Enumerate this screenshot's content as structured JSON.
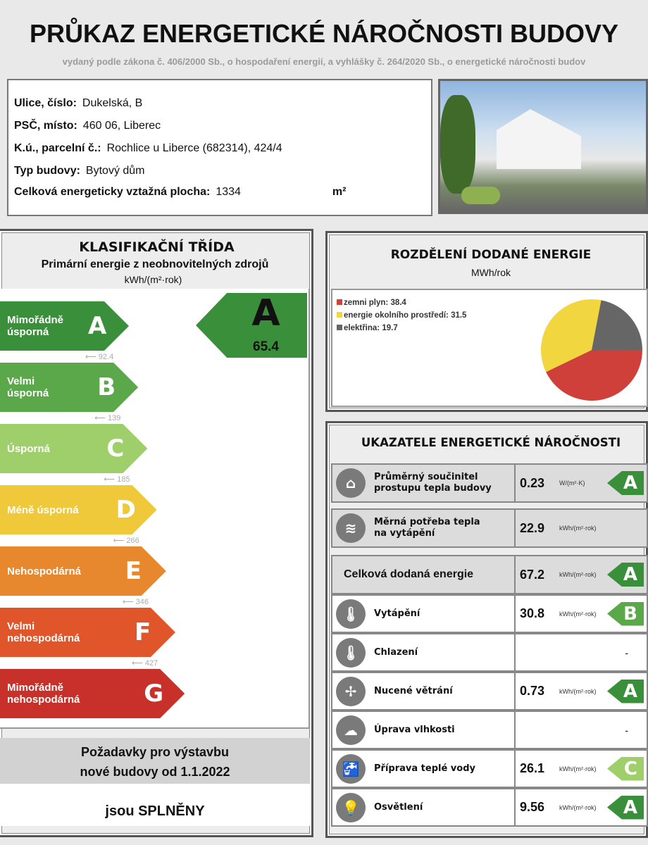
{
  "header": {
    "title": "PRŮKAZ ENERGETICKÉ NÁROČNOSTI BUDOVY",
    "subtitle": "vydaný podle zákona č. 406/2000 Sb., o hospodaření energií, a vyhlášky č. 264/2020 Sb., o energetické náročnosti budov"
  },
  "info": [
    {
      "label": "Ulice, číslo:",
      "value": "Dukelská, B"
    },
    {
      "label": "PSČ, místo:",
      "value": "460 06, Liberec"
    },
    {
      "label": "K.ú., parcelní č.:",
      "value": "Rochlice u Liberce (682314), 424/4"
    },
    {
      "label": "Typ budovy:",
      "value": "Bytový dům"
    },
    {
      "label": "Celková energeticky vztažná plocha:",
      "value": "1334",
      "unit": "m²"
    }
  ],
  "classification": {
    "title": "KLASIFIKAČNÍ TŘÍDA",
    "subtitle": "Primární energie z neobnovitelných zdrojů",
    "unit": "kWh/(m²·rok)",
    "classes": [
      {
        "letter": "A",
        "label": "Mimořádně\núsporná",
        "color": "#3a8f3a",
        "threshold": "92.4"
      },
      {
        "letter": "B",
        "label": "Velmi\núsporná",
        "color": "#5aa84a",
        "threshold": "139"
      },
      {
        "letter": "C",
        "label": "Úsporná",
        "color": "#9fcf6a",
        "threshold": "185"
      },
      {
        "letter": "D",
        "label": "Méně úsporná",
        "color": "#f0c93a",
        "threshold": "266"
      },
      {
        "letter": "E",
        "label": "Nehospodárná",
        "color": "#e8882e",
        "threshold": "346"
      },
      {
        "letter": "F",
        "label": "Velmi\nnehospodárná",
        "color": "#e0562a",
        "threshold": "427"
      },
      {
        "letter": "G",
        "label": "Mimořádně\nnehospodárná",
        "color": "#c8302a"
      }
    ],
    "result": {
      "letter": "A",
      "value": "65.4"
    },
    "requirement": "Požadavky pro výstavbu\nnové budovy od 1.1.2022",
    "requirement_result": "jsou SPLNĚNY"
  },
  "chart_data": {
    "type": "pie",
    "title": "ROZDĚLENÍ DODANÉ ENERGIE",
    "unit": "MWh/rok",
    "slices": [
      {
        "name": "zemni plyn",
        "value": 38.4,
        "color": "#d0403a"
      },
      {
        "name": "energie okolního prostředí",
        "value": 31.5,
        "color": "#f2d640"
      },
      {
        "name": "elektřina",
        "value": 19.7,
        "color": "#666666"
      }
    ]
  },
  "indicators": {
    "title": "UKAZATELE ENERGETICKÉ NÁROČNOSTI",
    "rows": [
      {
        "icon": "house-icon",
        "glyph": "⌂",
        "label": "Průměrný součinitel\nprostupu tepla budovy",
        "value": "0.23",
        "unit": "W/(m²·K)",
        "class": "A",
        "color": "#3a8f3a"
      },
      {
        "icon": "heat-thermometer-icon",
        "glyph": "≋",
        "label": "Měrná potřeba tepla\nna vytápění",
        "value": "22.9",
        "unit": "kWh/(m²·rok)"
      },
      {
        "label": "Celková dodaná energie",
        "value": "67.2",
        "unit": "kWh/(m²·rok)",
        "class": "A",
        "color": "#3a8f3a",
        "big": true
      },
      {
        "icon": "thermometer-plus-icon",
        "glyph": "🌡",
        "label": "Vytápění",
        "value": "30.8",
        "unit": "kWh/(m²·rok)",
        "class": "B",
        "color": "#5aa84a"
      },
      {
        "icon": "thermometer-minus-icon",
        "glyph": "🌡",
        "label": "Chlazení",
        "dash": "-"
      },
      {
        "icon": "fan-icon",
        "glyph": "✢",
        "label": "Nucené větrání",
        "value": "0.73",
        "unit": "kWh/(m²·rok)",
        "class": "A",
        "color": "#3a8f3a"
      },
      {
        "icon": "humidity-cloud-icon",
        "glyph": "☁",
        "label": "Úprava vlhkosti",
        "dash": "-"
      },
      {
        "icon": "tap-icon",
        "glyph": "🚰",
        "label": "Příprava teplé vody",
        "value": "26.1",
        "unit": "kWh/(m²·rok)",
        "class": "C",
        "color": "#9fcf6a"
      },
      {
        "icon": "lightbulb-icon",
        "glyph": "💡",
        "label": "Osvětlení",
        "value": "9.56",
        "unit": "kWh/(m²·rok)",
        "class": "A",
        "color": "#3a8f3a"
      }
    ]
  }
}
